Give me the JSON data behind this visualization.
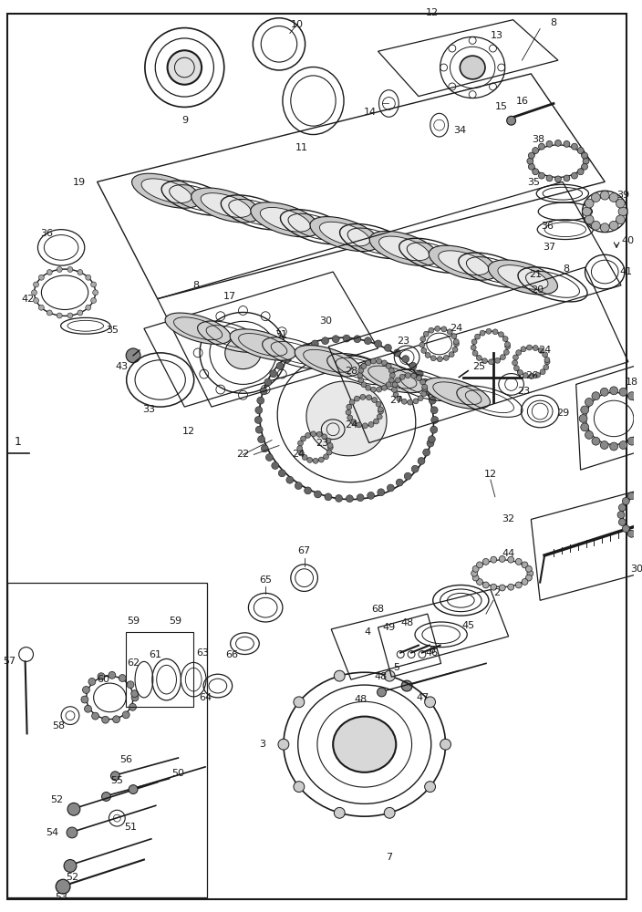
{
  "bg": "#ffffff",
  "lc": "#1a1a1a",
  "fig_w": 7.04,
  "fig_h": 10.0,
  "dpi": 100
}
